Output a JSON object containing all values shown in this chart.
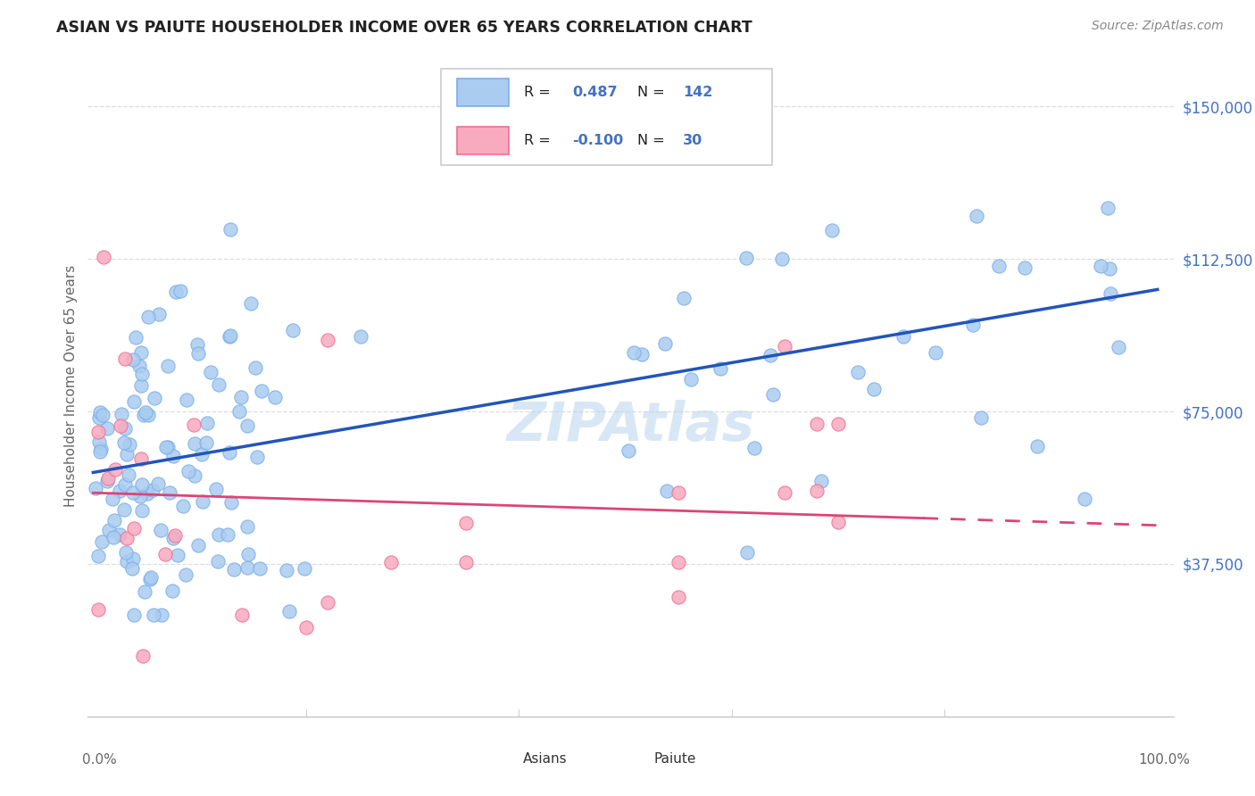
{
  "title": "ASIAN VS PAIUTE HOUSEHOLDER INCOME OVER 65 YEARS CORRELATION CHART",
  "source": "Source: ZipAtlas.com",
  "ylabel": "Householder Income Over 65 years",
  "ytick_labels": [
    "$37,500",
    "$75,000",
    "$112,500",
    "$150,000"
  ],
  "ytick_values": [
    37500,
    75000,
    112500,
    150000
  ],
  "ylim": [
    0,
    162500
  ],
  "xlim": [
    0.0,
    1.0
  ],
  "legend_asian_R": "0.487",
  "legend_asian_N": "142",
  "legend_paiute_R": "-0.100",
  "legend_paiute_N": "30",
  "asian_color": "#aaccf0",
  "asian_edge_color": "#7aaee8",
  "paiute_color": "#f8aabf",
  "paiute_edge_color": "#f07090",
  "asian_line_color": "#2255bb",
  "paiute_line_color": "#dd4477",
  "watermark": "ZIPAtlas",
  "title_color": "#222222",
  "source_color": "#888888",
  "axis_label_color": "#666666",
  "tick_color_right": "#4472c4",
  "grid_color": "#dddddd",
  "background_color": "#ffffff",
  "scatter_size": 120
}
